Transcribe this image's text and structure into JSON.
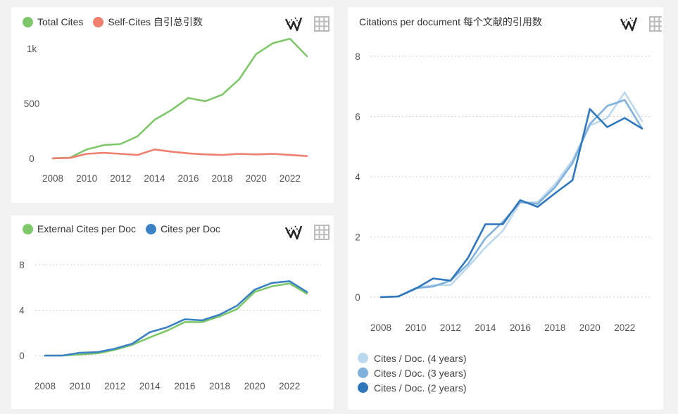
{
  "panels": {
    "cites": {
      "legend": [
        {
          "label": "Total Cites",
          "color": "#7ec86a"
        },
        {
          "label": "Self-Cites  自引总引数",
          "color": "#ef8070"
        }
      ]
    },
    "per_doc": {
      "legend": [
        {
          "label": "External Cites per Doc",
          "color": "#7ec86a"
        },
        {
          "label": "Cites per Doc",
          "color": "#3b82c4"
        }
      ]
    },
    "citations": {
      "title": "Citations per document  每个文献的引用数",
      "legend": [
        {
          "label": "Cites / Doc. (4 years)",
          "color": "#bcd8ef"
        },
        {
          "label": "Cites / Doc. (3 years)",
          "color": "#7fb1dd"
        },
        {
          "label": "Cites / Doc. (2 years)",
          "color": "#2f77bd"
        }
      ]
    }
  },
  "icons": {
    "line": "sparkline-icon",
    "table": "table-grid-icon"
  },
  "chart_data": [
    {
      "type": "line",
      "title": "",
      "x": [
        2008,
        2009,
        2010,
        2011,
        2012,
        2013,
        2014,
        2015,
        2016,
        2017,
        2018,
        2019,
        2020,
        2021,
        2022,
        2023
      ],
      "xticks": [
        2008,
        2010,
        2012,
        2014,
        2016,
        2018,
        2020,
        2022
      ],
      "xlim": [
        2008,
        2023
      ],
      "yticks": [
        0,
        500,
        1000
      ],
      "ytick_labels": [
        "0",
        "500",
        "1k"
      ],
      "ylim": [
        -40,
        1000
      ],
      "grid": false,
      "series": [
        {
          "name": "Total Cites",
          "color": "#7ec86a",
          "values": [
            0,
            5,
            80,
            120,
            130,
            200,
            350,
            440,
            550,
            520,
            580,
            720,
            950,
            1050,
            1090,
            930
          ]
        },
        {
          "name": "Self-Cites",
          "color": "#ef8070",
          "values": [
            0,
            3,
            40,
            50,
            40,
            30,
            80,
            60,
            45,
            35,
            30,
            40,
            35,
            40,
            30,
            20
          ]
        }
      ]
    },
    {
      "type": "line",
      "title": "",
      "x": [
        2008,
        2009,
        2010,
        2011,
        2012,
        2013,
        2014,
        2015,
        2016,
        2017,
        2018,
        2019,
        2020,
        2021,
        2022,
        2023
      ],
      "xticks": [
        2008,
        2010,
        2012,
        2014,
        2016,
        2018,
        2020,
        2022
      ],
      "xlim": [
        2008,
        2023
      ],
      "yticks": [
        0,
        4,
        8
      ],
      "ylim": [
        0,
        8
      ],
      "grid": true,
      "series": [
        {
          "name": "External Cites per Doc",
          "color": "#7ec86a",
          "values": [
            0,
            0,
            0.1,
            0.2,
            0.5,
            0.95,
            1.6,
            2.2,
            2.95,
            2.95,
            3.45,
            4.1,
            5.6,
            6.1,
            6.35,
            5.45
          ]
        },
        {
          "name": "Cites per Doc",
          "color": "#3b82c4",
          "values": [
            0,
            0,
            0.25,
            0.3,
            0.6,
            1.05,
            2.05,
            2.5,
            3.2,
            3.1,
            3.6,
            4.4,
            5.8,
            6.4,
            6.55,
            5.6
          ]
        }
      ]
    },
    {
      "type": "line",
      "title": "Citations per document  每个文献的引用数",
      "x": [
        2008,
        2009,
        2010,
        2011,
        2012,
        2013,
        2014,
        2015,
        2016,
        2017,
        2018,
        2019,
        2020,
        2021,
        2022,
        2023
      ],
      "xticks": [
        2008,
        2010,
        2012,
        2014,
        2016,
        2018,
        2020,
        2022
      ],
      "xlim": [
        2008,
        2023
      ],
      "yticks": [
        0,
        2,
        4,
        6,
        8
      ],
      "ylim": [
        0,
        8
      ],
      "grid": true,
      "series": [
        {
          "name": "Cites / Doc. (4 years)",
          "color": "#bcd8ef",
          "values": [
            0,
            0.02,
            0.3,
            0.4,
            0.4,
            1.0,
            1.65,
            2.2,
            3.15,
            3.15,
            3.75,
            4.55,
            5.7,
            5.95,
            6.8,
            5.85
          ]
        },
        {
          "name": "Cites / Doc. (3 years)",
          "color": "#7fb1dd",
          "values": [
            0,
            0.02,
            0.3,
            0.35,
            0.55,
            1.1,
            1.95,
            2.5,
            3.15,
            3.1,
            3.65,
            4.45,
            5.75,
            6.35,
            6.55,
            5.6
          ]
        },
        {
          "name": "Cites / Doc. (2 years)",
          "color": "#2f77bd",
          "values": [
            0,
            0.02,
            0.28,
            0.62,
            0.55,
            1.3,
            2.42,
            2.42,
            3.22,
            3.0,
            3.45,
            3.88,
            6.25,
            5.65,
            5.95,
            5.6
          ]
        }
      ]
    }
  ]
}
